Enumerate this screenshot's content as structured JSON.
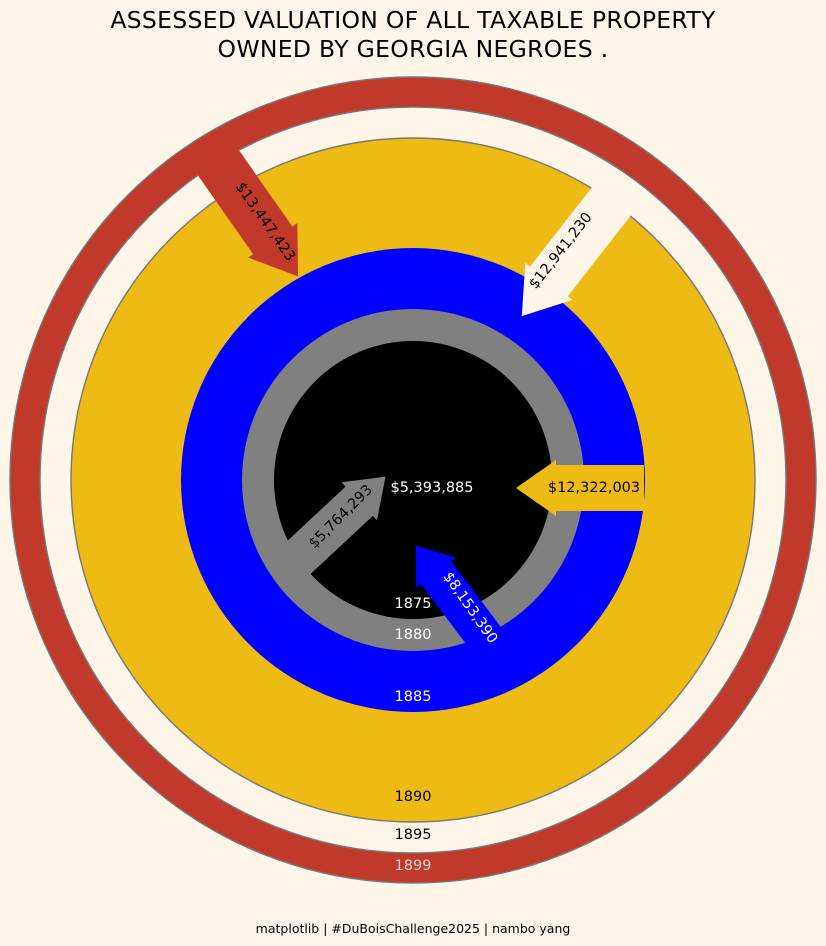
{
  "chart_data": {
    "type": "concentric-rings",
    "title_lines": [
      "ASSESSED VALUATION OF ALL TAXABLE PROPERTY",
      "OWNED BY GEORGIA NEGROES ."
    ],
    "credit": "matplotlib | #DuBoisChallenge2025 | nambo yang",
    "rings": [
      {
        "year": "1899",
        "value": 13447423,
        "label": "$13,447,423",
        "color": "#c0392b",
        "year_color": "#f0d8d0",
        "value_text_color": "#000000"
      },
      {
        "year": "1895",
        "value": 12941230,
        "label": "$12,941,230",
        "color": "#fdf5e7",
        "year_color": "#000000",
        "value_text_color": "#000000"
      },
      {
        "year": "1890",
        "value": 12322003,
        "label": "$12,322,003",
        "color": "#edbb13",
        "year_color": "#000000",
        "value_text_color": "#000000"
      },
      {
        "year": "1885",
        "value": 8153390,
        "label": "$8,153,390",
        "color": "#0000ff",
        "year_color": "#ffffff",
        "value_text_color": "#ffffff"
      },
      {
        "year": "1880",
        "value": 5764293,
        "label": "$5,764,293",
        "color": "#808080",
        "year_color": "#ffffff",
        "value_text_color": "#000000"
      },
      {
        "year": "1875",
        "value": 5393885,
        "label": "$5,393,885",
        "color": "#000000",
        "year_color": "#ffffff",
        "value_text_color": "#ffffff"
      }
    ]
  }
}
